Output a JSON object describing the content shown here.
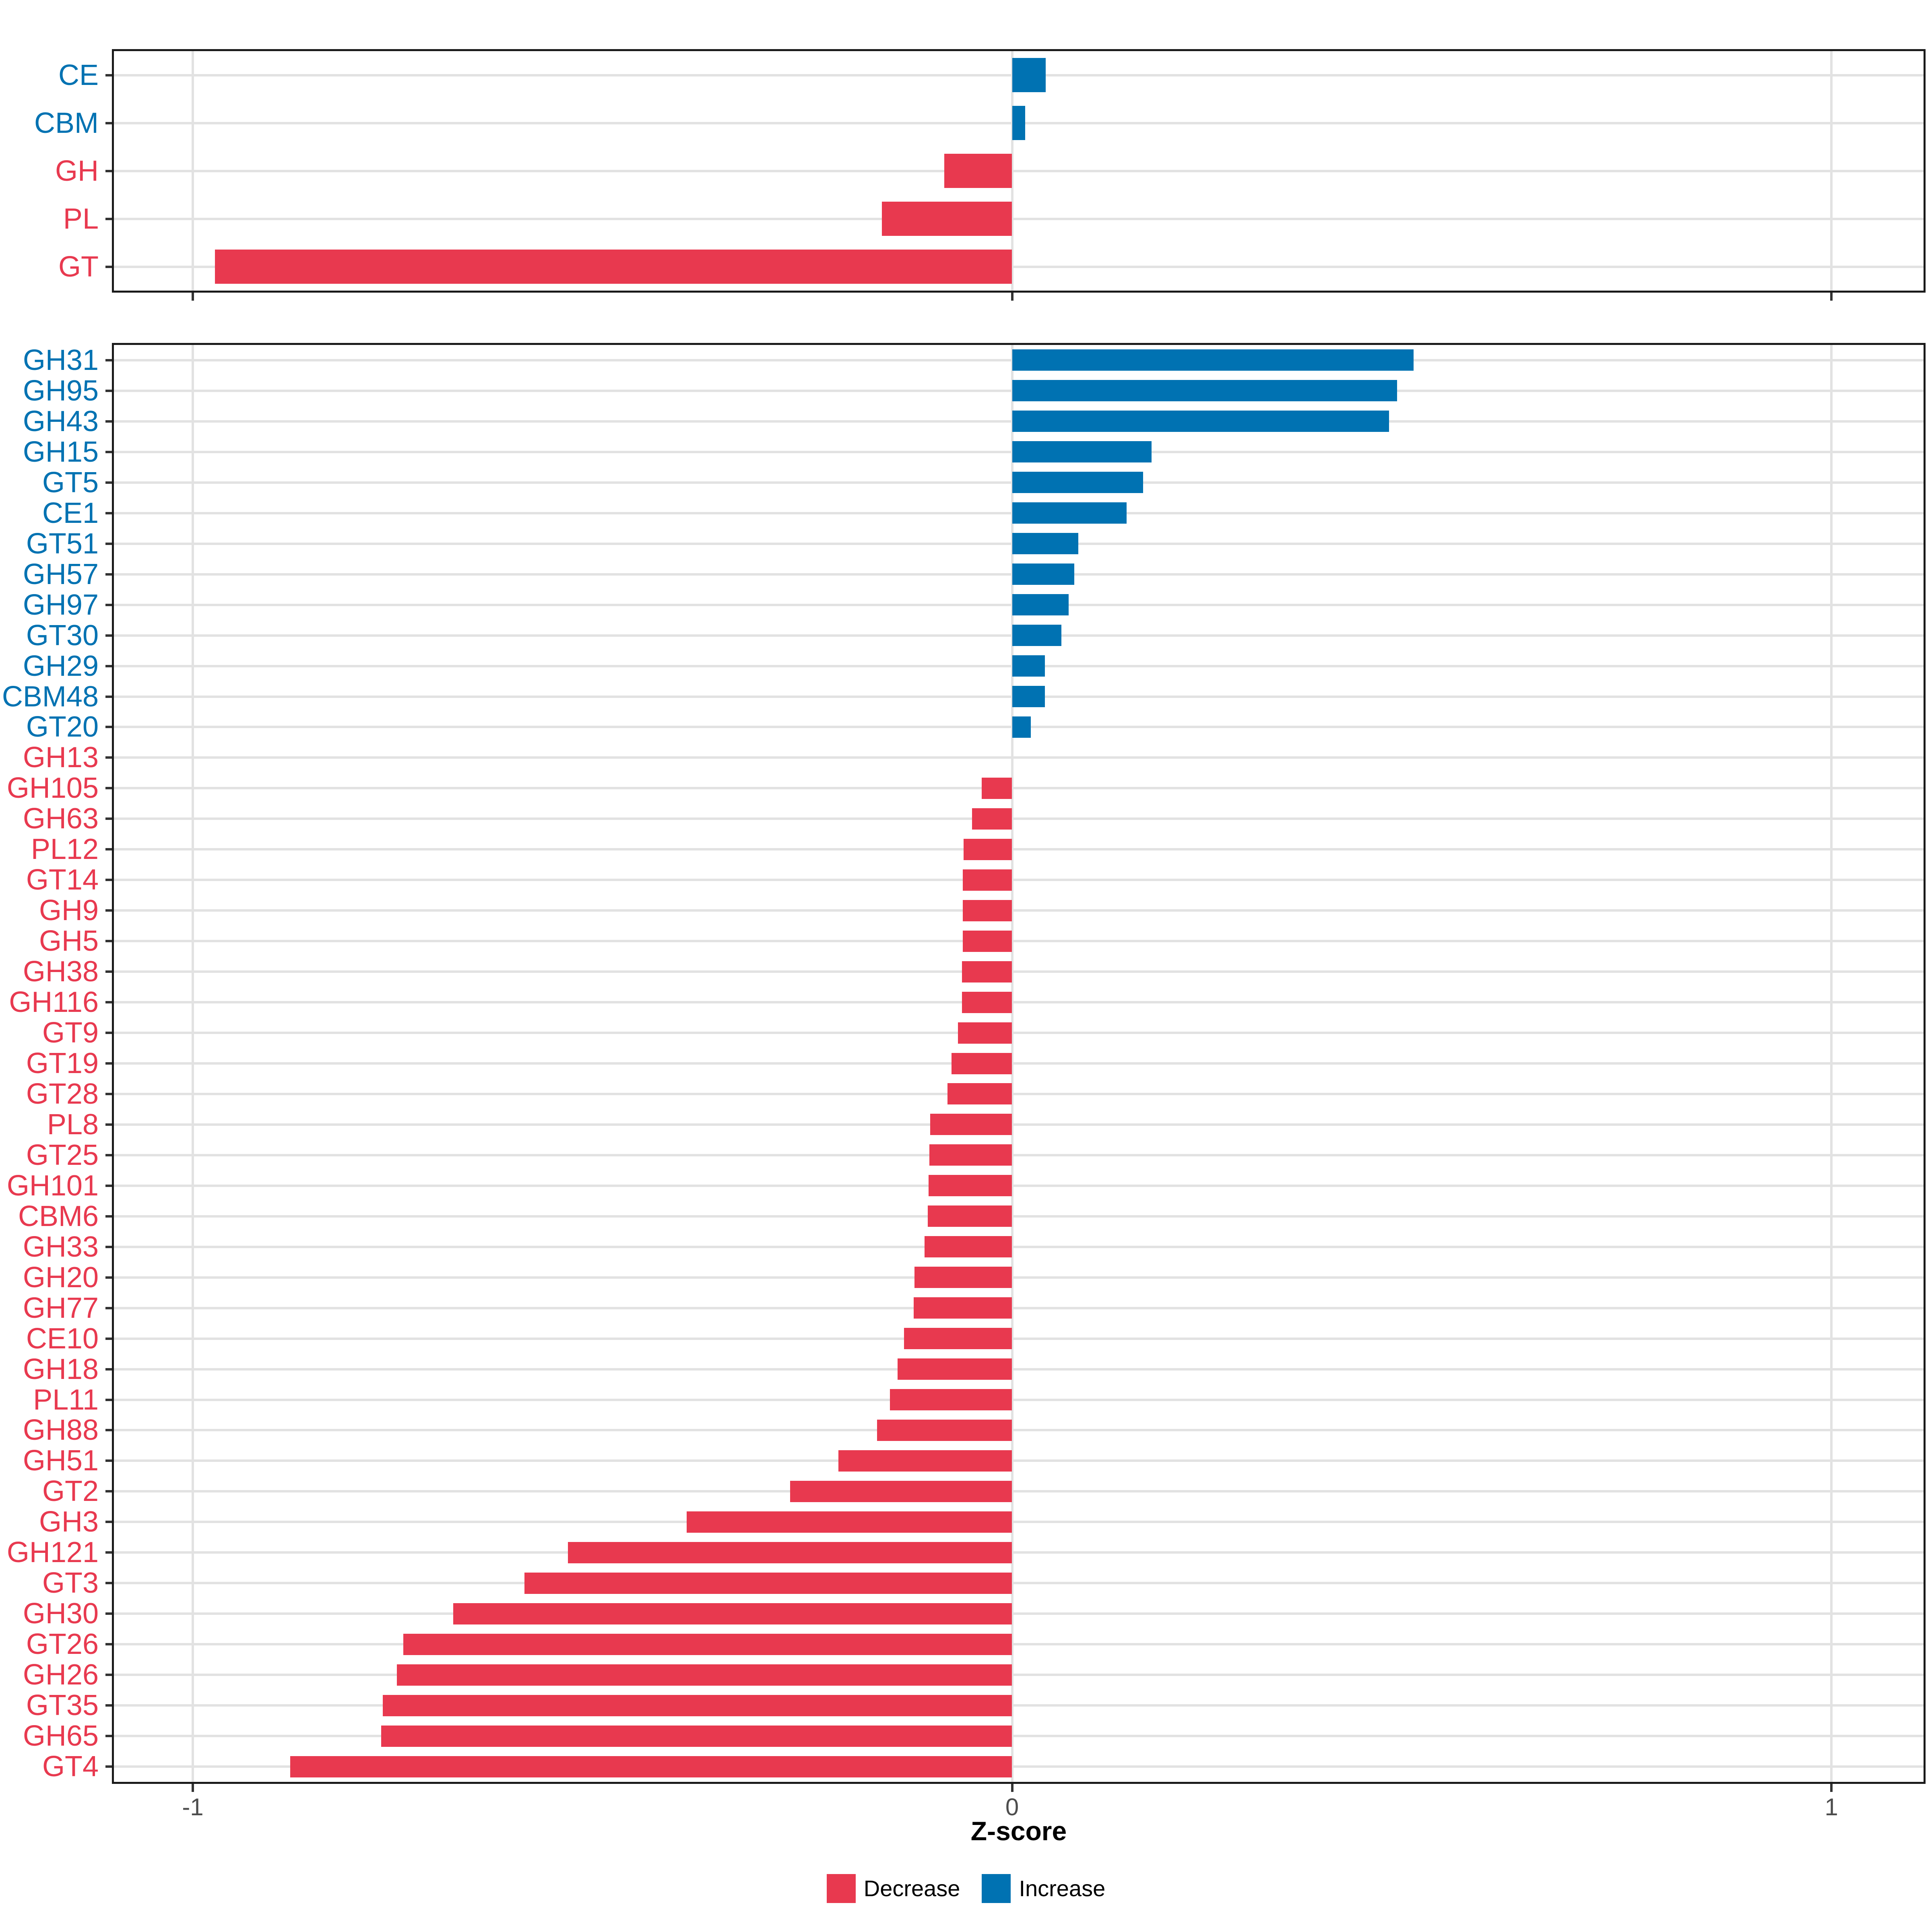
{
  "figure": {
    "xlabel": "Z-score",
    "x_tick_labels": [
      "-1",
      "0",
      "1"
    ],
    "x_tick_values": [
      -1,
      0,
      1
    ],
    "legend": [
      {
        "label": "Decrease",
        "color": "#e8394f"
      },
      {
        "label": "Increase",
        "color": "#0072b2"
      }
    ]
  },
  "colors": {
    "decrease": "#e8394f",
    "increase": "#0072b2",
    "grid": "#e2e2e2",
    "axis_text": "#4d4d4d",
    "panel_border": "#1a1a1a",
    "tick": "#333333"
  },
  "chart_data": [
    {
      "type": "bar",
      "panel": "cazyme-classes",
      "orientation": "horizontal",
      "xlabel": "Z-score",
      "xlim": [
        -1.1,
        1.12
      ],
      "xticks": [
        -1,
        0,
        1
      ],
      "grid": "major-only",
      "legend_position": "bottom",
      "categories": [
        "CE",
        "CBM",
        "GH",
        "PL",
        "GT"
      ],
      "values": [
        0.041,
        0.016,
        -0.083,
        -0.159,
        -0.973
      ]
    },
    {
      "type": "bar",
      "panel": "cazyme-families",
      "orientation": "horizontal",
      "xlabel": "Z-score",
      "xlim": [
        -1.1,
        1.12
      ],
      "xticks": [
        -1,
        0,
        1
      ],
      "grid": "major-only",
      "legend_position": "bottom",
      "categories": [
        "GH31",
        "GH95",
        "GH43",
        "GH15",
        "GT5",
        "CE1",
        "GT51",
        "GH57",
        "GH97",
        "GT30",
        "GH29",
        "CBM48",
        "GT20",
        "GH13",
        "GH105",
        "GH63",
        "PL12",
        "GT14",
        "GH9",
        "GH5",
        "GH38",
        "GH116",
        "GT9",
        "GT19",
        "GT28",
        "PL8",
        "GT25",
        "GH101",
        "CBM6",
        "GH33",
        "GH20",
        "GH77",
        "CE10",
        "GH18",
        "PL11",
        "GH88",
        "GH51",
        "GT2",
        "GH3",
        "GH121",
        "GT3",
        "GH30",
        "GT26",
        "GH26",
        "GT35",
        "GH65",
        "GT4"
      ],
      "values": [
        0.49,
        0.47,
        0.46,
        0.17,
        0.16,
        0.14,
        0.081,
        0.076,
        0.069,
        0.06,
        0.04,
        0.04,
        0.023,
        0,
        -0.037,
        -0.049,
        -0.059,
        -0.06,
        -0.06,
        -0.06,
        -0.061,
        -0.061,
        -0.066,
        -0.074,
        -0.079,
        -0.1,
        -0.101,
        -0.102,
        -0.103,
        -0.107,
        -0.119,
        -0.12,
        -0.132,
        -0.14,
        -0.149,
        -0.165,
        -0.212,
        -0.271,
        -0.397,
        -0.542,
        -0.595,
        -0.682,
        -0.743,
        -0.751,
        -0.768,
        -0.77,
        -0.881
      ]
    }
  ]
}
